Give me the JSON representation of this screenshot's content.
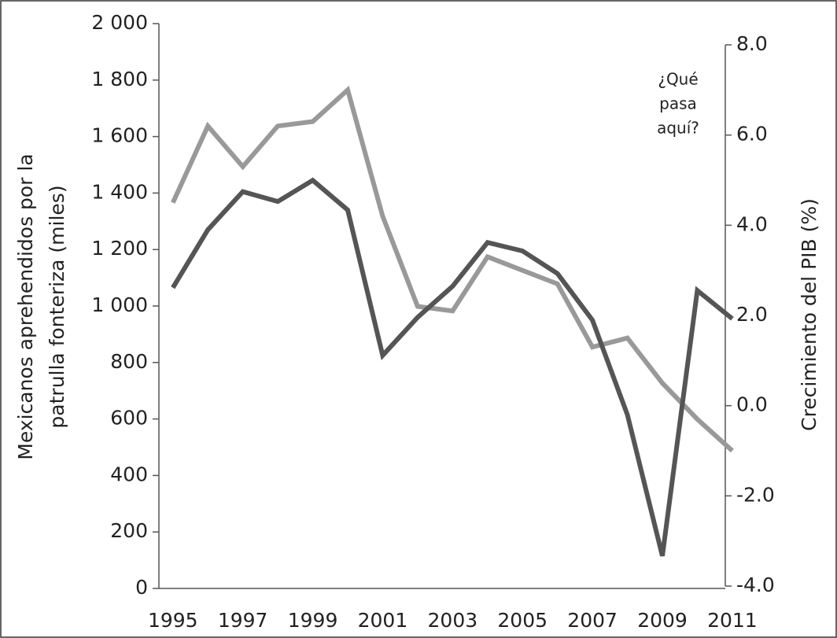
{
  "chart_data": {
    "type": "line",
    "y_label": [
      "Mexicanos aprehendidos por la",
      "patrulla fonteriza (miles)"
    ],
    "y2_label": "Crecimiento del PIB (%)",
    "annotation": [
      "¿Qué",
      "pasa",
      "aquí?"
    ],
    "x": [
      1995,
      1996,
      1997,
      1998,
      1999,
      2000,
      2001,
      2002,
      2003,
      2004,
      2005,
      2006,
      2007,
      2008,
      2009,
      2010,
      2011
    ],
    "xlim": [
      1994.6,
      2010.8
    ],
    "xticks": [
      1995,
      1997,
      1999,
      2001,
      2003,
      2005,
      2007,
      2009,
      2011
    ],
    "ylim": [
      0,
      2000
    ],
    "yticks": [
      0,
      200,
      400,
      600,
      800,
      {
        "value": 1000,
        "label": "1 000"
      },
      {
        "value": 1200,
        "label": "1 200"
      },
      {
        "value": 1400,
        "label": "1 400"
      },
      {
        "value": 1600,
        "label": "1 600"
      },
      {
        "value": 1800,
        "label": "1 800"
      },
      {
        "value": 2000,
        "label": "2 000"
      }
    ],
    "y2lim": [
      -4,
      8
    ],
    "y2ticks": [
      {
        "value": -4,
        "label": "-4.0"
      },
      {
        "value": -2,
        "label": "-2.0"
      },
      {
        "value": 0,
        "label": "0.0"
      },
      {
        "value": 2,
        "label": "2.0"
      },
      {
        "value": 4,
        "label": "4.0"
      },
      {
        "value": 6,
        "label": "6.0"
      },
      {
        "value": 8,
        "label": "8.0"
      }
    ],
    "series": [
      {
        "color": "#999999",
        "axis": "y2",
        "values": [
          4.5,
          6.2,
          5.3,
          6.2,
          6.3,
          7.0,
          4.2,
          2.2,
          2.1,
          3.3,
          3.0,
          2.7,
          1.3,
          1.5,
          0.5,
          -0.3,
          -1.0
        ]
      },
      {
        "color": "#555555",
        "axis": "y",
        "values": [
          1065,
          1270,
          1405,
          1370,
          1445,
          1340,
          825,
          960,
          1070,
          1225,
          1195,
          1115,
          950,
          615,
          115,
          1055,
          955
        ]
      }
    ]
  }
}
